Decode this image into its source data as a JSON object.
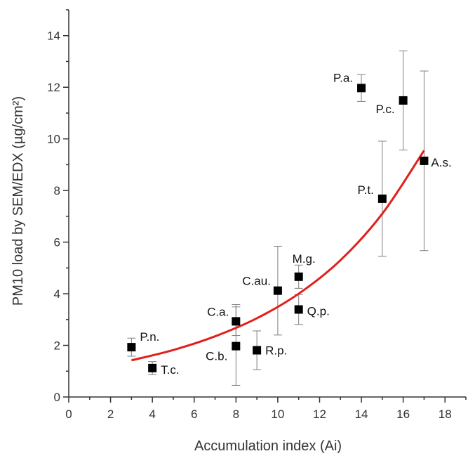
{
  "chart_data": {
    "type": "scatter",
    "xlabel": "Accumulation index (Ai)",
    "ylabel": "PM10 load by SEM/EDX (µg/cm²)",
    "xlim": [
      0,
      19
    ],
    "ylim": [
      0,
      15
    ],
    "x_ticks": [
      "0",
      "2",
      "4",
      "6",
      "8",
      "10",
      "12",
      "14",
      "16",
      "18"
    ],
    "y_ticks": [
      "0",
      "2",
      "4",
      "6",
      "8",
      "10",
      "12",
      "14"
    ],
    "marker_color": "#000000",
    "errorbar_color": "#808080",
    "fit_color": "#e0201b",
    "points": [
      {
        "label": "P.n.",
        "x": 3,
        "y": 1.93,
        "err_low": 0.35,
        "err_high": 0.35
      },
      {
        "label": "T.c.",
        "x": 4,
        "y": 1.12,
        "err_low": 0.25,
        "err_high": 0.25
      },
      {
        "label": "C.a.",
        "x": 8,
        "y": 2.93,
        "err_low": 0.55,
        "err_high": 0.65
      },
      {
        "label": "C.b.",
        "x": 8,
        "y": 1.97,
        "err_low": 1.52,
        "err_high": 1.52
      },
      {
        "label": "R.p.",
        "x": 9,
        "y": 1.81,
        "err_low": 0.75,
        "err_high": 0.75
      },
      {
        "label": "C.au.",
        "x": 10,
        "y": 4.12,
        "err_low": 1.72,
        "err_high": 1.72
      },
      {
        "label": "M.g.",
        "x": 11,
        "y": 4.66,
        "err_low": 0.45,
        "err_high": 0.45
      },
      {
        "label": "Q.p.",
        "x": 11,
        "y": 3.39,
        "err_low": 0.58,
        "err_high": 0.58
      },
      {
        "label": "P.a.",
        "x": 14,
        "y": 11.97,
        "err_low": 0.52,
        "err_high": 0.52
      },
      {
        "label": "P.c.",
        "x": 16,
        "y": 11.49,
        "err_low": 1.92,
        "err_high": 1.92
      },
      {
        "label": "P.t.",
        "x": 15,
        "y": 7.68,
        "err_low": 2.23,
        "err_high": 2.23
      },
      {
        "label": "A.s.",
        "x": 17,
        "y": 9.15,
        "err_low": 3.48,
        "err_high": 3.48
      }
    ],
    "fit": {
      "type": "exponential",
      "x_range": [
        3,
        17
      ],
      "points": [
        [
          3,
          1.42
        ],
        [
          5,
          1.82
        ],
        [
          7,
          2.35
        ],
        [
          9,
          3.05
        ],
        [
          11,
          4.0
        ],
        [
          13,
          5.3
        ],
        [
          15,
          7.1
        ],
        [
          17,
          9.55
        ]
      ]
    }
  }
}
